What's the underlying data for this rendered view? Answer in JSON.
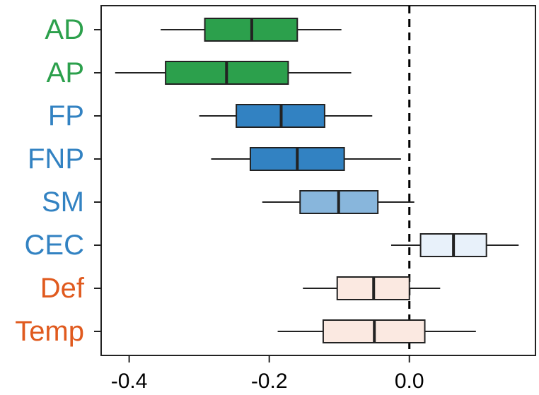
{
  "chart_data": {
    "type": "boxplot",
    "orientation": "horizontal",
    "xlim": [
      -0.44,
      0.18
    ],
    "xticks": [
      -0.4,
      -0.2,
      0.0
    ],
    "xtick_labels": [
      "-0.4",
      "-0.2",
      "0.0"
    ],
    "reference_line": {
      "x": 0.0,
      "style": "dashed"
    },
    "xlabel": "",
    "ylabel": "",
    "grid": false,
    "categories": [
      {
        "label": "AD",
        "label_color": "#2ca04c",
        "fill": "#2ca04c",
        "whisker_low": -0.355,
        "q1": -0.292,
        "median": -0.225,
        "q3": -0.16,
        "whisker_high": -0.097
      },
      {
        "label": "AP",
        "label_color": "#2ca04c",
        "fill": "#2ca04c",
        "whisker_low": -0.42,
        "q1": -0.348,
        "median": -0.261,
        "q3": -0.173,
        "whisker_high": -0.083
      },
      {
        "label": "FP",
        "label_color": "#3282c2",
        "fill": "#3282c2",
        "whisker_low": -0.3,
        "q1": -0.247,
        "median": -0.183,
        "q3": -0.121,
        "whisker_high": -0.053
      },
      {
        "label": "FNP",
        "label_color": "#3282c2",
        "fill": "#3282c2",
        "whisker_low": -0.283,
        "q1": -0.227,
        "median": -0.16,
        "q3": -0.093,
        "whisker_high": -0.012
      },
      {
        "label": "SM",
        "label_color": "#3282c2",
        "fill": "#88b6dc",
        "whisker_low": -0.21,
        "q1": -0.156,
        "median": -0.101,
        "q3": -0.045,
        "whisker_high": 0.007
      },
      {
        "label": "CEC",
        "label_color": "#3282c2",
        "fill": "#e8f1fa",
        "whisker_low": -0.026,
        "q1": 0.016,
        "median": 0.063,
        "q3": 0.11,
        "whisker_high": 0.156
      },
      {
        "label": "Def",
        "label_color": "#e05a1e",
        "fill": "#fbe9e1",
        "whisker_low": -0.152,
        "q1": -0.103,
        "median": -0.051,
        "q3": 0.0,
        "whisker_high": 0.044
      },
      {
        "label": "Temp",
        "label_color": "#e05a1e",
        "fill": "#fbe9e1",
        "whisker_low": -0.188,
        "q1": -0.123,
        "median": -0.05,
        "q3": 0.022,
        "whisker_high": 0.095
      }
    ]
  }
}
